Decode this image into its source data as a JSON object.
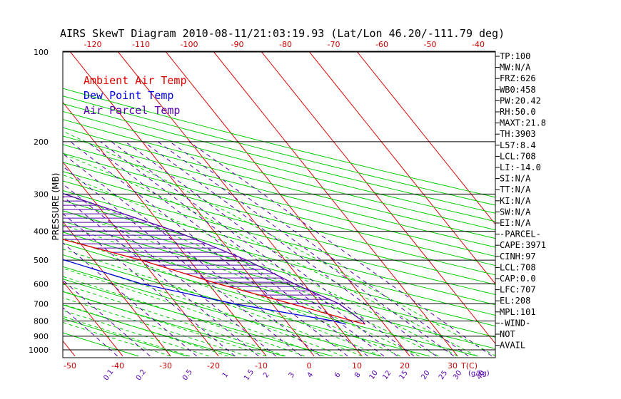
{
  "chart_data": {
    "type": "skewt",
    "title": "AIRS SkewT Diagram 2010-08-11/21:03:19.93 (Lat/Lon 46.20/-111.79 deg)",
    "ylabel": "PRESSURE (MB)",
    "pressure_ticks": [
      100,
      200,
      300,
      400,
      500,
      600,
      700,
      800,
      900,
      1000
    ],
    "top_temp_ticks": [
      -120,
      -110,
      -100,
      -90,
      -80,
      -70,
      -60,
      -50,
      -40
    ],
    "bottom_temp_ticks": [
      -50,
      -40,
      -30,
      -20,
      -10,
      0,
      10,
      20,
      30
    ],
    "bottom_temp_unit": "T(C)",
    "mixing_ratio_ticks": [
      "0.1",
      "0.2",
      "0.5",
      "1",
      "1.5",
      "2",
      "3",
      "4",
      "6",
      "8",
      "10",
      "12",
      "15",
      "20",
      "25",
      "30",
      "40"
    ],
    "mixing_ratio_unit": "(g/kg)",
    "legend": [
      {
        "label": "Ambient Air Temp",
        "color": "#dd0000"
      },
      {
        "label": "Dew Point Temp",
        "color": "#0000dd"
      },
      {
        "label": "Air Parcel Temp",
        "color": "#5500aa"
      }
    ],
    "series": [
      {
        "name": "Ambient Air Temp",
        "color": "#dd0000",
        "points": [
          [
            100,
            -48
          ],
          [
            150,
            -53
          ],
          [
            200,
            -57
          ],
          [
            250,
            -64
          ],
          [
            300,
            -57
          ],
          [
            400,
            -38
          ],
          [
            500,
            -20
          ],
          [
            600,
            -8
          ],
          [
            700,
            4
          ],
          [
            800,
            14
          ],
          [
            820,
            16
          ]
        ]
      },
      {
        "name": "Dew Point Temp",
        "color": "#0000dd",
        "points": [
          [
            100,
            -82
          ],
          [
            150,
            -92
          ],
          [
            200,
            -85
          ],
          [
            250,
            -76
          ],
          [
            300,
            -67
          ],
          [
            400,
            -52
          ],
          [
            500,
            -36
          ],
          [
            600,
            -24
          ],
          [
            700,
            -8
          ],
          [
            800,
            10
          ],
          [
            820,
            12
          ]
        ]
      },
      {
        "name": "Air Parcel Temp",
        "color": "#5500aa",
        "points": [
          [
            100,
            -86
          ],
          [
            150,
            -70
          ],
          [
            200,
            -57
          ],
          [
            250,
            -40
          ],
          [
            300,
            -25
          ],
          [
            400,
            -8
          ],
          [
            500,
            2
          ],
          [
            600,
            8
          ],
          [
            700,
            14
          ],
          [
            800,
            16
          ],
          [
            820,
            16
          ]
        ]
      }
    ],
    "stats": [
      "TP:100",
      "MW:N/A",
      "FRZ:626",
      "WB0:458",
      "PW:20.42",
      "RH:50.0",
      "MAXT:21.8",
      "TH:3903",
      "L57:8.4",
      "LCL:708",
      "LI:-14.0",
      "SI:N/A",
      "TT:N/A",
      "KI:N/A",
      "SW:N/A",
      "EI:N/A",
      "-PARCEL-",
      "CAPE:3971",
      "CINH:97",
      "LCL:708",
      "CAP:0.0",
      "LFC:707",
      "EL:208",
      "MPL:101",
      "-WIND-",
      "NOT",
      "AVAIL"
    ],
    "colors": {
      "dry_adiabat": "#00cc00",
      "moist_adiabat": "#00cc00",
      "isotherm": "#dd0000",
      "mixing_ratio": "#5500aa",
      "isobar": "#000000"
    },
    "grid": true
  }
}
